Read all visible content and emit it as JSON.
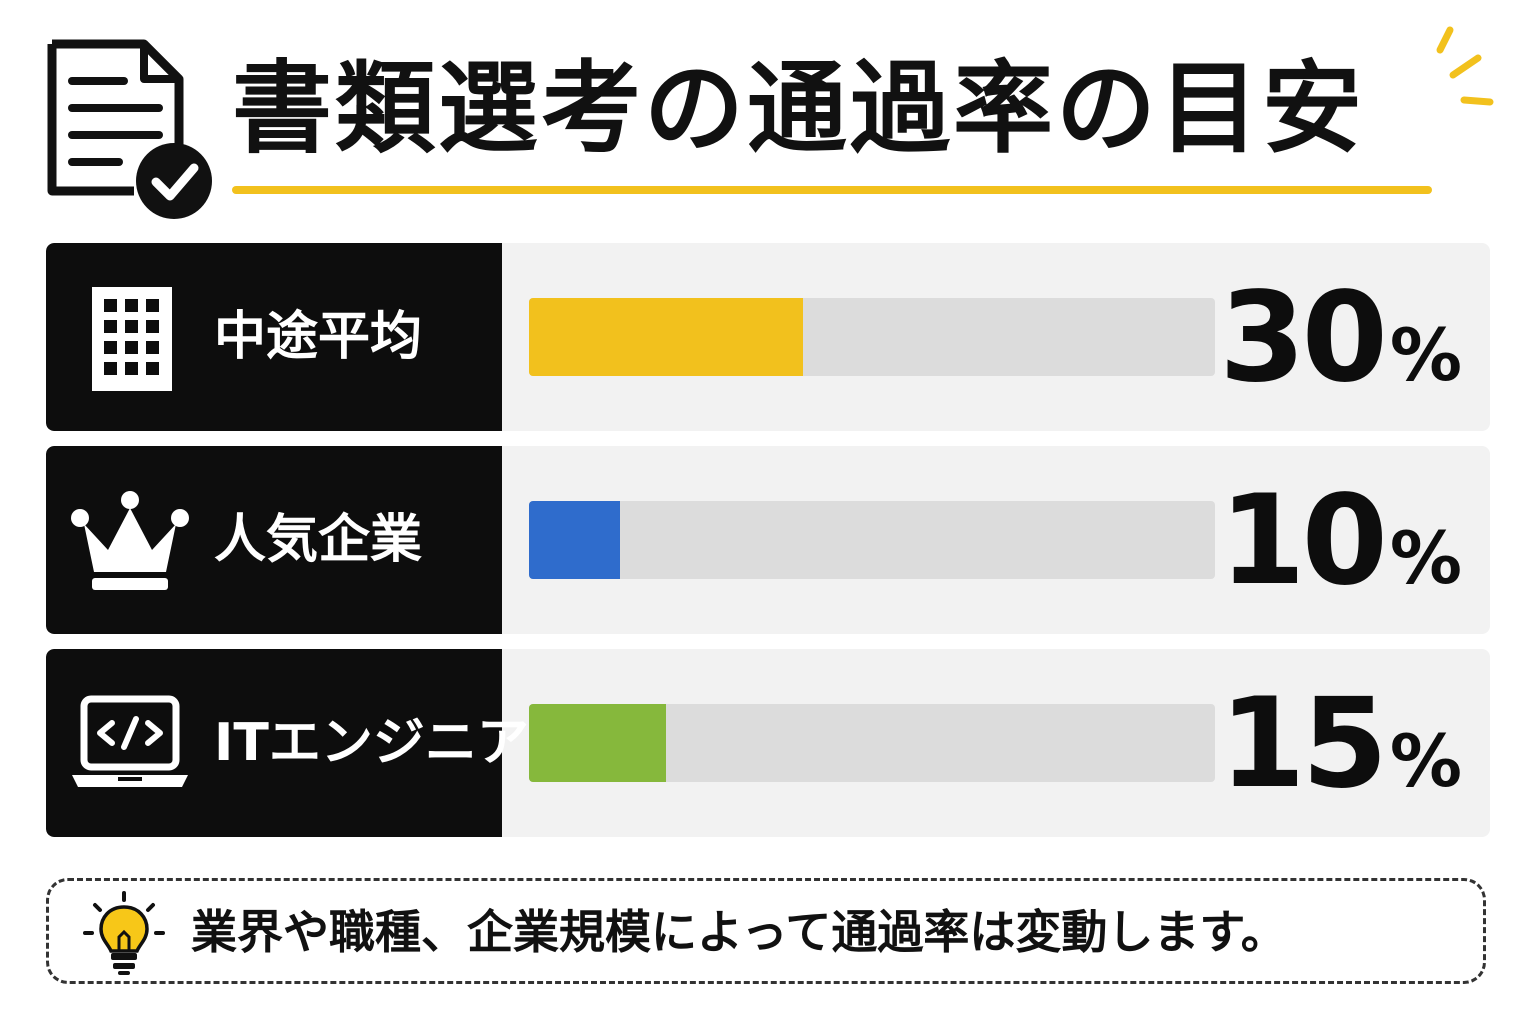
{
  "title": "書類選考の通過率の目安",
  "note": {
    "text": "業界や職種、企業規模によって通過率は変動します。",
    "icon": "lightbulb-icon"
  },
  "colors": {
    "accent": "#f2c11d",
    "label_bg": "#0d0d0d",
    "track": "#dcdcdc",
    "row_bg": "#f2f2f2"
  },
  "chart_data": {
    "type": "bar",
    "orientation": "horizontal",
    "title": "書類選考の通過率の目安",
    "unit": "%",
    "xlim": [
      0,
      75
    ],
    "categories": [
      "中途平均",
      "人気企業",
      "ITエンジニア"
    ],
    "values": [
      30,
      10,
      15
    ],
    "value_labels": [
      "30",
      "10",
      "15"
    ],
    "colors": [
      "#f2c11d",
      "#2f6ccc",
      "#86b83c"
    ],
    "icons": [
      "building-icon",
      "crown-icon",
      "laptop-code-icon"
    ]
  }
}
